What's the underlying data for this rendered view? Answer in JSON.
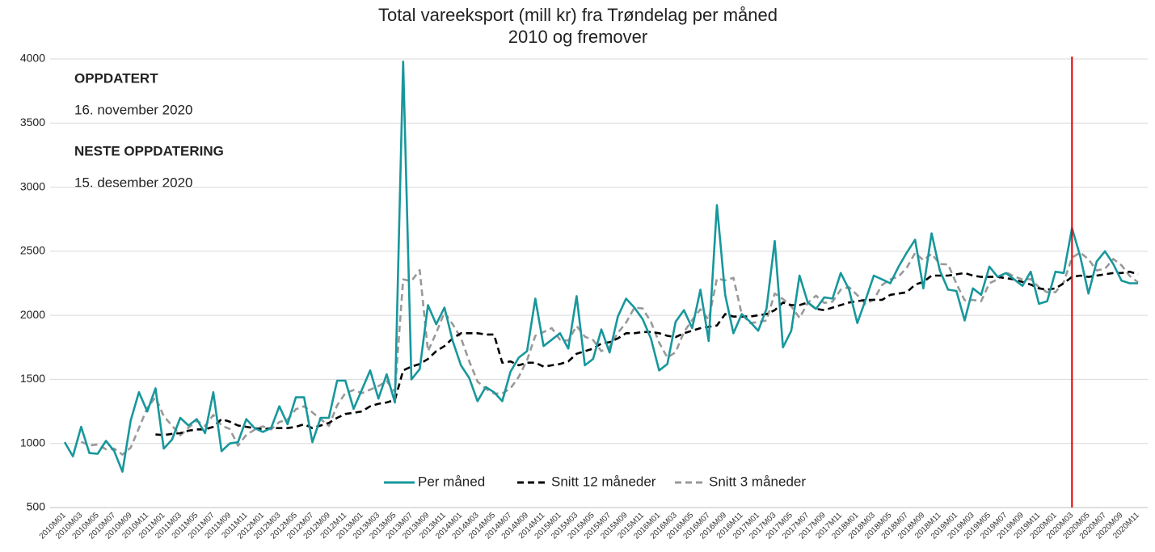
{
  "chart_data": {
    "type": "line",
    "title": "Total vareeksport (mill kr) fra Trøndelag per måned",
    "subtitle": "2010 og fremover",
    "info": [
      "OPPDATERT",
      "16. november 2020",
      "NESTE OPPDATERING",
      "15. desember 2020"
    ],
    "categories": [
      "2010M01",
      null,
      "2010M03",
      null,
      "2010M05",
      null,
      "2010M07",
      null,
      "2010M09",
      null,
      "2010M11",
      null,
      "2011M01",
      null,
      "2011M03",
      null,
      "2011M05",
      null,
      "2011M07",
      null,
      "2011M09",
      null,
      "2011M11",
      null,
      "2012M01",
      null,
      "2012M03",
      null,
      "2012M05",
      null,
      "2012M07",
      null,
      "2012M09",
      null,
      "2012M11",
      null,
      "2013M01",
      null,
      "2013M03",
      null,
      "2013M05",
      null,
      "2013M07",
      null,
      "2013M09",
      null,
      "2013M11",
      null,
      "2014M01",
      null,
      "2014M03",
      null,
      "2014M05",
      null,
      "2014M07",
      null,
      "2014M09",
      null,
      "2014M11",
      null,
      "2015M01",
      null,
      "2015M03",
      null,
      "2015M05",
      null,
      "2015M07",
      null,
      "2015M09",
      null,
      "2015M11",
      null,
      "2016M01",
      null,
      "2016M03",
      null,
      "2016M05",
      null,
      "2016M07",
      null,
      "2016M09",
      null,
      "2016M11",
      null,
      "2017M01",
      null,
      "2017M03",
      null,
      "2017M05",
      null,
      "2017M07",
      null,
      "2017M09",
      null,
      "2017M11",
      null,
      "2018M01",
      null,
      "2018M03",
      null,
      "2018M05",
      null,
      "2018M07",
      null,
      "2018M09",
      null,
      "2018M11",
      null,
      "2019M01",
      null,
      "2019M03",
      null,
      "2019M05",
      null,
      "2019M07",
      null,
      "2019M09",
      null,
      "2019M11",
      null,
      "2020M01",
      null,
      "2020M03",
      null,
      "2020M05",
      null,
      "2020M07",
      null,
      "2020M09",
      null,
      "2020M11"
    ],
    "series": [
      {
        "name": "Per måned",
        "color": "#17979c",
        "dash": "solid",
        "values": [
          1010,
          900,
          1130,
          925,
          920,
          1020,
          940,
          780,
          1180,
          1400,
          1250,
          1430,
          960,
          1030,
          1200,
          1140,
          1190,
          1080,
          1400,
          940,
          1000,
          1010,
          1190,
          1120,
          1090,
          1120,
          1290,
          1150,
          1360,
          1360,
          1010,
          1200,
          1200,
          1490,
          1490,
          1270,
          1420,
          1570,
          1350,
          1540,
          1320,
          3980,
          1500,
          1580,
          2080,
          1930,
          2060,
          1800,
          1610,
          1510,
          1330,
          1440,
          1400,
          1330,
          1560,
          1670,
          1720,
          2130,
          1760,
          1810,
          1860,
          1740,
          2150,
          1610,
          1660,
          1890,
          1710,
          1990,
          2130,
          2060,
          1970,
          1820,
          1570,
          1620,
          1950,
          2040,
          1900,
          2200,
          1800,
          2860,
          2160,
          1860,
          2010,
          1950,
          1880,
          2050,
          2580,
          1750,
          1880,
          2310,
          2100,
          2050,
          2140,
          2130,
          2330,
          2200,
          1940,
          2120,
          2310,
          2280,
          2250,
          2380,
          2490,
          2590,
          2210,
          2640,
          2350,
          2200,
          2190,
          1960,
          2210,
          2160,
          2380,
          2300,
          2330,
          2280,
          2230,
          2340,
          2090,
          2110,
          2340,
          2330,
          2680,
          2460,
          2170,
          2420,
          2500,
          2400,
          2270,
          2250,
          2250
        ]
      },
      {
        "name": "Snitt 12 måneder",
        "color": "#000000",
        "dash": "dashed",
        "values": [
          null,
          null,
          null,
          null,
          null,
          null,
          null,
          null,
          null,
          null,
          null,
          1070,
          1065,
          1075,
          1080,
          1100,
          1110,
          1110,
          1130,
          1190,
          1170,
          1140,
          1130,
          1120,
          1110,
          1120,
          1120,
          1120,
          1130,
          1150,
          1120,
          1140,
          1160,
          1200,
          1230,
          1240,
          1250,
          1290,
          1310,
          1320,
          1340,
          1570,
          1600,
          1620,
          1660,
          1720,
          1760,
          1820,
          1860,
          1860,
          1860,
          1850,
          1850,
          1630,
          1640,
          1610,
          1630,
          1630,
          1600,
          1610,
          1620,
          1640,
          1700,
          1720,
          1740,
          1780,
          1790,
          1820,
          1860,
          1860,
          1870,
          1870,
          1860,
          1840,
          1830,
          1860,
          1880,
          1900,
          1910,
          1920,
          2010,
          1990,
          1990,
          1990,
          2000,
          2010,
          2040,
          2100,
          2080,
          2080,
          2100,
          2050,
          2040,
          2060,
          2080,
          2100,
          2110,
          2120,
          2120,
          2120,
          2160,
          2170,
          2180,
          2240,
          2260,
          2310,
          2310,
          2310,
          2320,
          2330,
          2310,
          2300,
          2300,
          2300,
          2290,
          2280,
          2260,
          2240,
          2210,
          2200,
          2210,
          2250,
          2300,
          2310,
          2300,
          2310,
          2320,
          2330,
          2330,
          2340,
          2320
        ]
      },
      {
        "name": "Snitt 3 måneder",
        "color": "#999999",
        "dash": "dashed",
        "values": [
          null,
          null,
          1013,
          985,
          992,
          955,
          960,
          913,
          967,
          1120,
          1277,
          1360,
          1213,
          1140,
          1063,
          1123,
          1177,
          1137,
          1223,
          1140,
          1113,
          983,
          1067,
          1107,
          1133,
          1110,
          1167,
          1187,
          1267,
          1290,
          1243,
          1190,
          1137,
          1297,
          1393,
          1417,
          1393,
          1420,
          1447,
          1487,
          1403,
          2280,
          2267,
          2353,
          1720,
          1863,
          2023,
          1930,
          1823,
          1640,
          1483,
          1427,
          1390,
          1390,
          1430,
          1520,
          1650,
          1840,
          1870,
          1900,
          1810,
          1803,
          1917,
          1833,
          1807,
          1720,
          1753,
          1863,
          1943,
          2060,
          2053,
          1950,
          1787,
          1670,
          1713,
          1870,
          1963,
          2047,
          1967,
          2287,
          2273,
          2293,
          2010,
          1940,
          1947,
          1960,
          2170,
          2127,
          2070,
          1980,
          2097,
          2153,
          2097,
          2107,
          2200,
          2220,
          2157,
          2087,
          2123,
          2237,
          2280,
          2303,
          2373,
          2487,
          2430,
          2480,
          2400,
          2397,
          2247,
          2117,
          2120,
          2110,
          2250,
          2280,
          2337,
          2303,
          2280,
          2283,
          2220,
          2180,
          2180,
          2260,
          2450,
          2490,
          2437,
          2350,
          2363,
          2440,
          2390,
          2307,
          2257
        ]
      }
    ],
    "ylim": [
      500,
      4000
    ],
    "yticks": [
      500,
      1000,
      1500,
      2000,
      2500,
      3000,
      3500,
      4000
    ],
    "grid": true,
    "legend": "bottom",
    "marker_category": "2020M03",
    "marker_color": "#e00000"
  }
}
